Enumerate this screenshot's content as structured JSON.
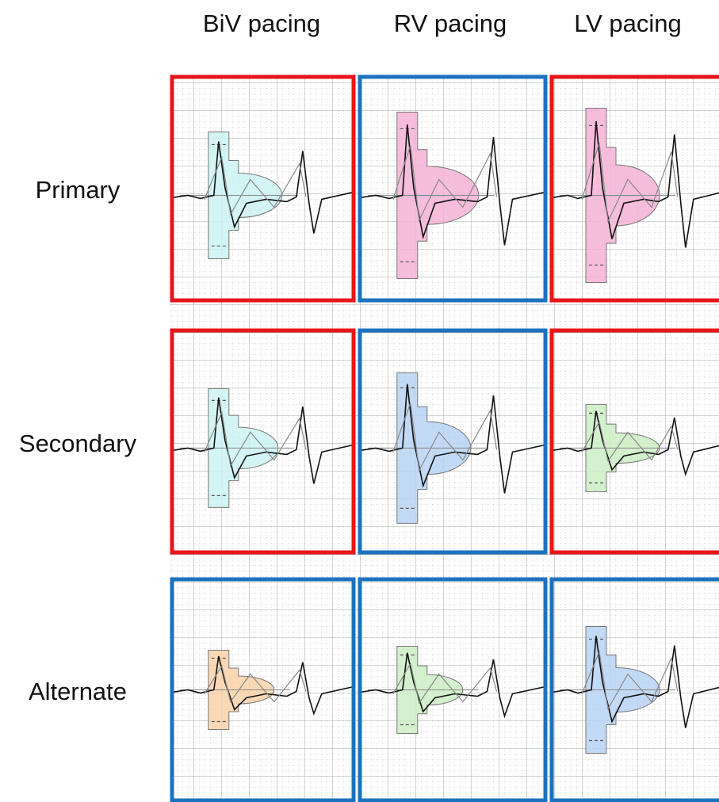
{
  "columns": [
    "BiV pacing",
    "RV pacing",
    "LV pacing"
  ],
  "rows": [
    "Primary",
    "Secondary",
    "Alternate"
  ]
}
